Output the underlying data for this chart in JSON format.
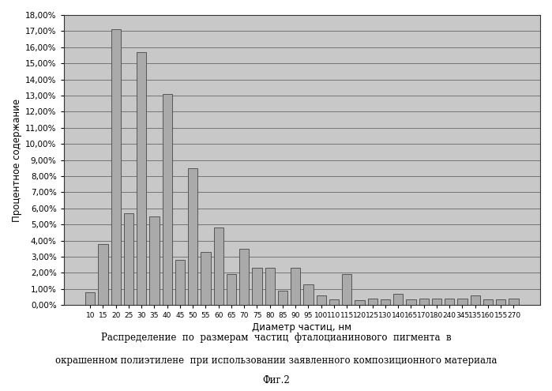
{
  "categories": [
    "10",
    "15",
    "20",
    "25",
    "30",
    "35",
    "40",
    "45",
    "50",
    "55",
    "60",
    "65",
    "70",
    "75",
    "80",
    "85",
    "90",
    "95",
    "100",
    "110",
    "115",
    "120",
    "125",
    "130",
    "140",
    "165",
    "170",
    "180",
    "240",
    "345",
    "135",
    "160",
    "155",
    "270"
  ],
  "values": [
    0.8,
    3.8,
    17.1,
    5.7,
    15.7,
    5.5,
    13.1,
    2.8,
    8.5,
    3.3,
    4.8,
    1.9,
    3.5,
    2.3,
    2.3,
    0.9,
    2.3,
    1.3,
    0.6,
    0.35,
    1.9,
    0.3,
    0.4,
    0.35,
    0.7,
    0.35,
    0.4,
    0.4,
    0.4,
    0.4,
    0.6,
    0.35,
    0.35,
    0.4
  ],
  "bar_color": "#aaaaaa",
  "bar_edge_color": "#555555",
  "background_color": "#c8c8c8",
  "grid_color": "#666666",
  "ylabel": "Процентное содержание",
  "xlabel": "Диаметр частиц, нм",
  "ylim": [
    0,
    18.0
  ],
  "ytick_step": 1.0,
  "caption_line1": "Распределение  по  размерам  частиц  фталоцианинового  пигмента  в",
  "caption_line2": "окрашенном полиэтилене  при использовании заявленного композиционного материала",
  "caption_line3": "Фиг.2"
}
